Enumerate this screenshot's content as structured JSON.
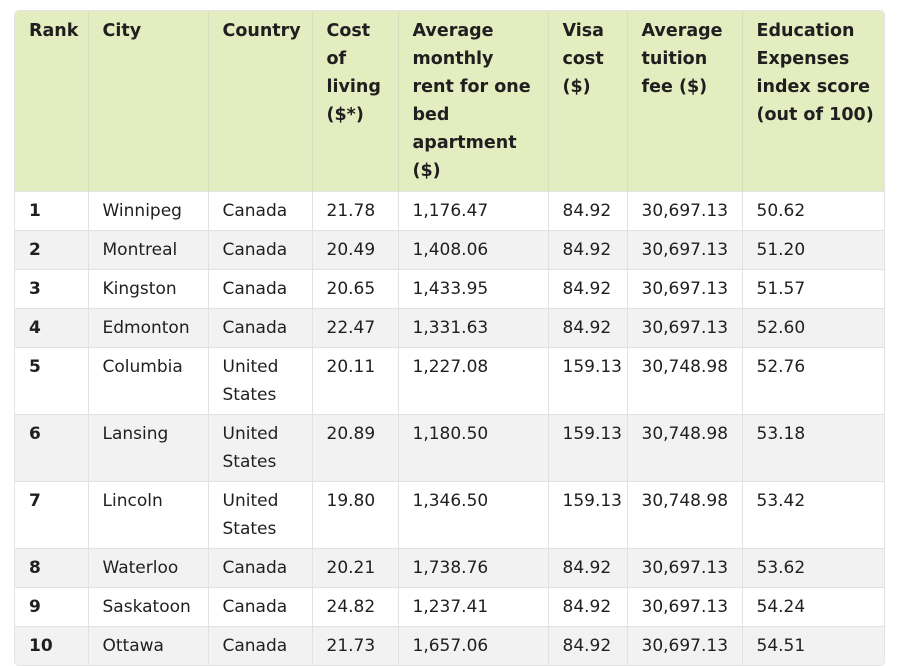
{
  "table": {
    "headers": [
      "Rank",
      "City",
      "Country",
      "Cost of living ($*)",
      "Average monthly rent for one bed apartment ($)",
      "Visa cost ($)",
      "Average tuition fee ($)",
      "Education Expenses index score (out of 100)"
    ],
    "rows": [
      [
        "1",
        "Winnipeg",
        "Canada",
        "21.78",
        "1,176.47",
        "84.92",
        "30,697.13",
        "50.62"
      ],
      [
        "2",
        "Montreal",
        "Canada",
        "20.49",
        "1,408.06",
        "84.92",
        "30,697.13",
        "51.20"
      ],
      [
        "3",
        "Kingston",
        "Canada",
        "20.65",
        "1,433.95",
        "84.92",
        "30,697.13",
        "51.57"
      ],
      [
        "4",
        "Edmonton",
        "Canada",
        "22.47",
        "1,331.63",
        "84.92",
        "30,697.13",
        "52.60"
      ],
      [
        "5",
        "Columbia",
        "United States",
        "20.11",
        "1,227.08",
        "159.13",
        "30,748.98",
        "52.76"
      ],
      [
        "6",
        "Lansing",
        "United States",
        "20.89",
        "1,180.50",
        "159.13",
        "30,748.98",
        "53.18"
      ],
      [
        "7",
        "Lincoln",
        "United States",
        "19.80",
        "1,346.50",
        "159.13",
        "30,748.98",
        "53.42"
      ],
      [
        "8",
        "Waterloo",
        "Canada",
        "20.21",
        "1,738.76",
        "84.92",
        "30,697.13",
        "53.62"
      ],
      [
        "9",
        "Saskatoon",
        "Canada",
        "24.82",
        "1,237.41",
        "84.92",
        "30,697.13",
        "54.24"
      ],
      [
        "10",
        "Ottawa",
        "Canada",
        "21.73",
        "1,657.06",
        "84.92",
        "30,697.13",
        "54.51"
      ]
    ]
  },
  "colors": {
    "header_bg": "#e4edc0",
    "row_alt_bg": "#f2f2f2",
    "row_bg": "#ffffff",
    "text": "#1f1f1f"
  }
}
